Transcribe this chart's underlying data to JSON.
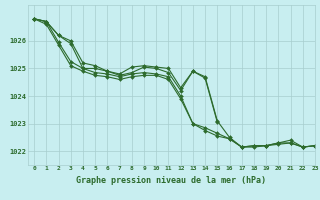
{
  "title": "Graphe pression niveau de la mer (hPa)",
  "background_color": "#c8eef0",
  "grid_color": "#a8cece",
  "line_color": "#2d6b2d",
  "xlim": [
    -0.5,
    23
  ],
  "ylim": [
    1021.5,
    1027.3
  ],
  "yticks": [
    1022,
    1023,
    1024,
    1025,
    1026
  ],
  "xticks": [
    0,
    1,
    2,
    3,
    4,
    5,
    6,
    7,
    8,
    9,
    10,
    11,
    12,
    13,
    14,
    15,
    16,
    17,
    18,
    19,
    20,
    21,
    22,
    23
  ],
  "series": [
    [
      1026.8,
      1026.7,
      1026.2,
      1026.0,
      1025.2,
      1025.1,
      1024.9,
      1024.8,
      1025.05,
      1025.1,
      1025.05,
      1025.0,
      1024.3,
      1024.9,
      1024.7,
      1023.1,
      1022.5,
      1022.15,
      1022.15,
      1022.2,
      1022.3,
      1022.4,
      1022.15,
      1022.2
    ],
    [
      1026.8,
      1026.7,
      1026.2,
      1025.9,
      1025.0,
      1025.0,
      1024.9,
      1024.75,
      1024.85,
      1025.05,
      1025.0,
      1024.85,
      1024.2,
      1024.9,
      1024.65,
      1023.05,
      null,
      null,
      null,
      null,
      null,
      null,
      null,
      null
    ],
    [
      1026.8,
      1026.7,
      1025.95,
      1025.25,
      1025.0,
      1024.85,
      1024.8,
      1024.7,
      1024.8,
      1024.85,
      1024.8,
      1024.7,
      1024.0,
      1023.0,
      1022.85,
      1022.65,
      1022.45,
      1022.15,
      1022.2,
      1022.2,
      1022.3,
      1022.3,
      1022.15,
      1022.2
    ],
    [
      1026.8,
      1026.6,
      1025.85,
      1025.1,
      1024.9,
      1024.75,
      1024.7,
      1024.6,
      1024.7,
      1024.75,
      1024.75,
      1024.6,
      1023.9,
      1023.0,
      1022.75,
      1022.55,
      1022.45,
      1022.15,
      1022.2,
      1022.2,
      1022.25,
      1022.3,
      1022.15,
      1022.2
    ]
  ],
  "figsize": [
    3.2,
    2.0
  ],
  "dpi": 100
}
